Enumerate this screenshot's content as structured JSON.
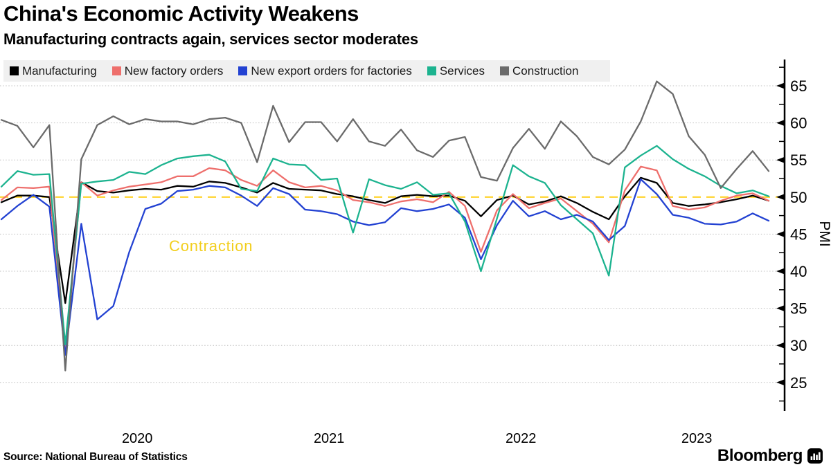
{
  "header": {
    "title": "China's Economic Activity Weakens",
    "subtitle": "Manufacturing contracts again, services sector moderates"
  },
  "footer": {
    "source": "Source: National Bureau of Statistics",
    "brand": "Bloomberg"
  },
  "colors": {
    "baseline_yellow": "#FFD32A",
    "contraction_text": "#F2CE1D",
    "gridline": "#BFBFBF",
    "legend_background": "#F0F0F0",
    "axis": "#000000"
  },
  "chart_data": {
    "type": "line",
    "title": "China's Economic Activity Weakens",
    "subtitle": "Manufacturing contracts again, services sector moderates",
    "xlabel": "",
    "ylabel": "PMI",
    "ylim": [
      22.5,
      67.5
    ],
    "y_ticks": [
      25,
      30,
      35,
      40,
      45,
      50,
      55,
      60,
      65
    ],
    "grid": "horizontal-dotted",
    "legend_position": "top-left",
    "baseline": {
      "value": 50,
      "label": "Contraction",
      "color": "#FFD32A"
    },
    "x_tick_labels": [
      "2020",
      "2021",
      "2022",
      "2023"
    ],
    "x": [
      "2019-10",
      "2019-11",
      "2019-12",
      "2020-01",
      "2020-02",
      "2020-03",
      "2020-04",
      "2020-05",
      "2020-06",
      "2020-07",
      "2020-08",
      "2020-09",
      "2020-10",
      "2020-11",
      "2020-12",
      "2021-01",
      "2021-02",
      "2021-03",
      "2021-04",
      "2021-05",
      "2021-06",
      "2021-07",
      "2021-08",
      "2021-09",
      "2021-10",
      "2021-11",
      "2021-12",
      "2022-01",
      "2022-02",
      "2022-03",
      "2022-04",
      "2022-05",
      "2022-06",
      "2022-07",
      "2022-08",
      "2022-09",
      "2022-10",
      "2022-11",
      "2022-12",
      "2023-01",
      "2023-02",
      "2023-03",
      "2023-04",
      "2023-05",
      "2023-06",
      "2023-07",
      "2023-08",
      "2023-09",
      "2023-10"
    ],
    "series": [
      {
        "name": "Manufacturing",
        "color": "#000000",
        "values": [
          49.3,
          50.2,
          50.2,
          50.0,
          35.7,
          52.0,
          50.8,
          50.6,
          50.9,
          51.1,
          51.0,
          51.5,
          51.4,
          52.1,
          51.9,
          51.3,
          50.6,
          51.9,
          51.1,
          51.0,
          50.9,
          50.4,
          50.1,
          49.6,
          49.2,
          50.1,
          50.3,
          50.1,
          50.2,
          49.5,
          47.4,
          49.6,
          50.2,
          49.0,
          49.4,
          50.1,
          49.2,
          48.0,
          47.0,
          50.1,
          52.6,
          51.9,
          49.2,
          48.8,
          49.0,
          49.3,
          49.7,
          50.2,
          49.5
        ]
      },
      {
        "name": "New factory orders",
        "color": "#EE6F6C",
        "values": [
          49.6,
          51.3,
          51.2,
          51.4,
          29.3,
          52.0,
          50.2,
          50.9,
          51.4,
          51.7,
          52.0,
          52.8,
          52.8,
          53.9,
          53.6,
          52.3,
          51.5,
          53.6,
          52.0,
          51.3,
          51.5,
          50.9,
          49.6,
          49.3,
          48.8,
          49.4,
          49.7,
          49.3,
          50.7,
          48.8,
          42.6,
          48.2,
          50.4,
          48.5,
          49.2,
          49.8,
          48.1,
          46.4,
          43.9,
          50.9,
          54.1,
          53.6,
          48.8,
          48.3,
          48.6,
          49.5,
          50.2,
          50.5,
          49.5
        ]
      },
      {
        "name": "New export orders for factories",
        "color": "#2342D2",
        "values": [
          47.0,
          48.8,
          50.3,
          48.7,
          28.7,
          46.4,
          33.5,
          35.3,
          42.6,
          48.4,
          49.1,
          50.8,
          51.0,
          51.5,
          51.3,
          50.2,
          48.8,
          51.2,
          50.4,
          48.3,
          48.1,
          47.7,
          46.7,
          46.2,
          46.6,
          48.5,
          48.1,
          48.4,
          49.0,
          47.2,
          41.6,
          46.2,
          49.5,
          47.4,
          48.1,
          47.0,
          47.6,
          46.7,
          44.2,
          46.1,
          52.4,
          50.4,
          47.6,
          47.2,
          46.4,
          46.3,
          46.7,
          47.8,
          46.8
        ]
      },
      {
        "name": "Services",
        "color": "#1CB38F",
        "values": [
          51.4,
          53.5,
          53.0,
          53.1,
          30.1,
          51.8,
          52.1,
          52.3,
          53.4,
          53.1,
          54.3,
          55.2,
          55.5,
          55.7,
          54.8,
          51.1,
          50.8,
          55.2,
          54.4,
          54.3,
          52.3,
          52.5,
          45.2,
          52.4,
          51.6,
          51.1,
          52.0,
          50.3,
          50.5,
          46.7,
          40.0,
          47.1,
          54.3,
          52.8,
          51.9,
          48.9,
          47.0,
          45.1,
          39.4,
          54.0,
          55.6,
          56.9,
          55.1,
          53.8,
          52.8,
          51.5,
          50.5,
          50.9,
          50.1
        ]
      },
      {
        "name": "Construction",
        "color": "#6B6B6B",
        "values": [
          60.4,
          59.6,
          56.7,
          59.7,
          26.6,
          55.1,
          59.7,
          60.9,
          59.8,
          60.5,
          60.2,
          60.2,
          59.8,
          60.5,
          60.7,
          60.0,
          54.7,
          62.3,
          57.4,
          60.1,
          60.1,
          57.5,
          60.5,
          57.5,
          56.9,
          59.1,
          56.3,
          55.4,
          57.6,
          58.1,
          52.7,
          52.2,
          56.6,
          59.2,
          56.5,
          60.2,
          58.2,
          55.4,
          54.4,
          56.4,
          60.2,
          65.6,
          63.9,
          58.2,
          55.7,
          51.2,
          53.8,
          56.2,
          53.5
        ]
      }
    ]
  }
}
